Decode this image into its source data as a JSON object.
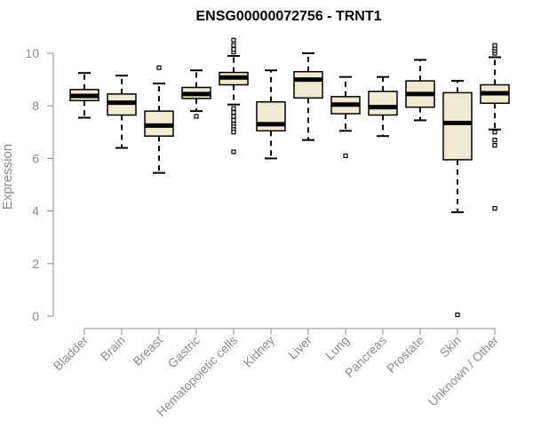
{
  "chart_data": {
    "type": "box",
    "title": "ENSG00000072756 - TRNT1",
    "xlabel": "",
    "ylabel": "Expression",
    "ylim": [
      0,
      10
    ],
    "yticks": [
      0,
      2,
      4,
      6,
      8,
      10
    ],
    "grid": false,
    "box_fill": "#f0ead2",
    "categories": [
      "Bladder",
      "Brain",
      "Breast",
      "Gastric",
      "Hematopoietic cells",
      "Kidney",
      "Liver",
      "Lung",
      "Pancreas",
      "Prostate",
      "Skin",
      "Unknown / Other"
    ],
    "boxes": [
      {
        "min": 7.55,
        "q1": 8.2,
        "median": 8.38,
        "q3": 8.62,
        "max": 9.25,
        "outliers": []
      },
      {
        "min": 6.4,
        "q1": 7.65,
        "median": 8.12,
        "q3": 8.45,
        "max": 9.15,
        "outliers": []
      },
      {
        "min": 5.45,
        "q1": 6.85,
        "median": 7.25,
        "q3": 7.8,
        "max": 8.85,
        "outliers": [
          9.45
        ]
      },
      {
        "min": 7.8,
        "q1": 8.28,
        "median": 8.45,
        "q3": 8.7,
        "max": 9.35,
        "outliers": [
          7.6
        ]
      },
      {
        "min": 8.05,
        "q1": 8.8,
        "median": 9.08,
        "q3": 9.27,
        "max": 9.9,
        "outliers": [
          7.9,
          7.75,
          7.6,
          7.45,
          7.3,
          7.2,
          7.1,
          7.0,
          6.25,
          10.05,
          10.15,
          10.3,
          10.5
        ]
      },
      {
        "min": 6.0,
        "q1": 7.05,
        "median": 7.3,
        "q3": 8.15,
        "max": 9.35,
        "outliers": []
      },
      {
        "min": 6.7,
        "q1": 8.3,
        "median": 9.0,
        "q3": 9.3,
        "max": 10.0,
        "outliers": []
      },
      {
        "min": 7.05,
        "q1": 7.7,
        "median": 8.05,
        "q3": 8.35,
        "max": 9.1,
        "outliers": [
          6.1
        ]
      },
      {
        "min": 6.85,
        "q1": 7.65,
        "median": 7.95,
        "q3": 8.55,
        "max": 9.1,
        "outliers": []
      },
      {
        "min": 7.45,
        "q1": 7.95,
        "median": 8.45,
        "q3": 8.95,
        "max": 9.75,
        "outliers": []
      },
      {
        "min": 3.95,
        "q1": 5.95,
        "median": 7.35,
        "q3": 8.5,
        "max": 8.95,
        "outliers": [
          0.05
        ]
      },
      {
        "min": 7.1,
        "q1": 8.1,
        "median": 8.48,
        "q3": 8.8,
        "max": 9.85,
        "outliers": [
          7.0,
          6.7,
          6.5,
          4.1,
          10.0,
          10.1,
          10.2,
          10.3
        ]
      }
    ]
  }
}
